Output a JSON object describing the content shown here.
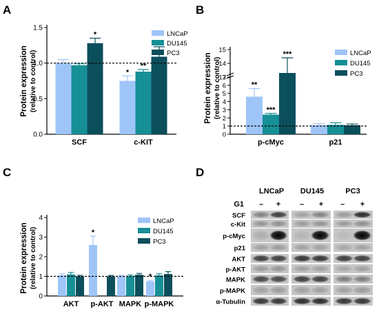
{
  "colors": {
    "LNCaP": "#9fc5f8",
    "DU145": "#178f96",
    "PC3": "#0c4f5c"
  },
  "panels": [
    {
      "letter": "A",
      "ylabel": "Protein expression",
      "ylabel2": "(relative to control)"
    },
    {
      "letter": "B",
      "ylabel": "Protein expression",
      "ylabel2": "(relative to control)"
    },
    {
      "letter": "C",
      "ylabel": "Protein expression",
      "ylabel2": "(relative to control)"
    },
    {
      "letter": "D"
    }
  ],
  "chart_data": [
    {
      "type": "bar",
      "panel": "A",
      "categories": [
        "SCF",
        "c-KIT"
      ],
      "series": [
        {
          "name": "LNCaP",
          "values": [
            1.0,
            0.75
          ],
          "errors": [
            0.05,
            0.07
          ],
          "sig": [
            "",
            "*"
          ]
        },
        {
          "name": "DU145",
          "values": [
            0.97,
            0.88
          ],
          "errors": [
            0.02,
            0.03
          ],
          "sig": [
            "",
            "**"
          ]
        },
        {
          "name": "PC3",
          "values": [
            1.28,
            1.09
          ],
          "errors": [
            0.07,
            0.14
          ],
          "sig": [
            "*",
            ""
          ]
        }
      ],
      "ylabel": "Protein expression (relative to control)",
      "ylim": [
        0.0,
        1.5
      ],
      "yticks": [
        "0.0",
        "0.5",
        "1.0",
        "1.5"
      ],
      "ytick_values": [
        0.0,
        0.5,
        1.0,
        1.5
      ],
      "reference_line": 1.0,
      "legend": "top-right"
    },
    {
      "type": "bar",
      "panel": "B",
      "categories": [
        "p-cMyc",
        "p21"
      ],
      "series": [
        {
          "name": "LNCaP",
          "values": [
            4.6,
            1.1
          ],
          "errors": [
            1.0,
            0.2
          ],
          "sig": [
            "**",
            ""
          ]
        },
        {
          "name": "DU145",
          "values": [
            2.4,
            1.15
          ],
          "errors": [
            0.15,
            0.25
          ],
          "sig": [
            "***",
            ""
          ]
        },
        {
          "name": "PC3",
          "values": [
            13.3,
            1.1
          ],
          "errors": [
            1.1,
            0.15
          ],
          "sig": [
            "***",
            ""
          ]
        }
      ],
      "ylabel": "Protein expression (relative to control)",
      "ylim": [
        0,
        15
      ],
      "y_axis_break": [
        7,
        13
      ],
      "yticks": [
        "0",
        "1",
        "2",
        "3",
        "4",
        "5",
        "6",
        "7",
        "13",
        "14",
        "15"
      ],
      "ytick_values": [
        0,
        1,
        2,
        3,
        4,
        5,
        6,
        7,
        13,
        14,
        15
      ],
      "reference_line": 1.0,
      "legend": "top-right"
    },
    {
      "type": "bar",
      "panel": "C",
      "categories": [
        "AKT",
        "p-AKT",
        "MAPK",
        "p-MAPK"
      ],
      "series": [
        {
          "name": "LNCaP",
          "values": [
            1.05,
            2.6,
            1.0,
            0.75
          ],
          "errors": [
            0.08,
            0.45,
            0.05,
            0.05
          ],
          "sig": [
            "",
            "*",
            "",
            "*"
          ]
        },
        {
          "name": "DU145",
          "values": [
            1.1,
            0.0,
            1.02,
            1.05
          ],
          "errors": [
            0.1,
            0.0,
            0.05,
            0.08
          ],
          "sig": [
            "",
            "",
            "",
            ""
          ]
        },
        {
          "name": "PC3",
          "values": [
            1.0,
            1.0,
            1.08,
            1.12
          ],
          "errors": [
            0.05,
            0.05,
            0.07,
            0.12
          ],
          "sig": [
            "",
            "",
            "",
            ""
          ]
        }
      ],
      "ylabel": "Protein expression (relative to control)",
      "ylim": [
        0,
        4
      ],
      "yticks": [
        "0",
        "1",
        "2",
        "3",
        "4"
      ],
      "ytick_values": [
        0,
        1,
        2,
        3,
        4
      ],
      "reference_line": 1.0,
      "legend": "top-right"
    }
  ],
  "blot": {
    "cell_lines": [
      "LNCaP",
      "DU145",
      "PC3"
    ],
    "treatment_label": "G1",
    "signs": [
      "–",
      "+",
      "–",
      "+",
      "–",
      "+"
    ],
    "proteins": [
      "SCF",
      "c-Kit",
      "p-cMyc",
      "p21",
      "AKT",
      "p-AKT",
      "MAPK",
      "p-MAPK",
      "α-Tubulin"
    ]
  }
}
